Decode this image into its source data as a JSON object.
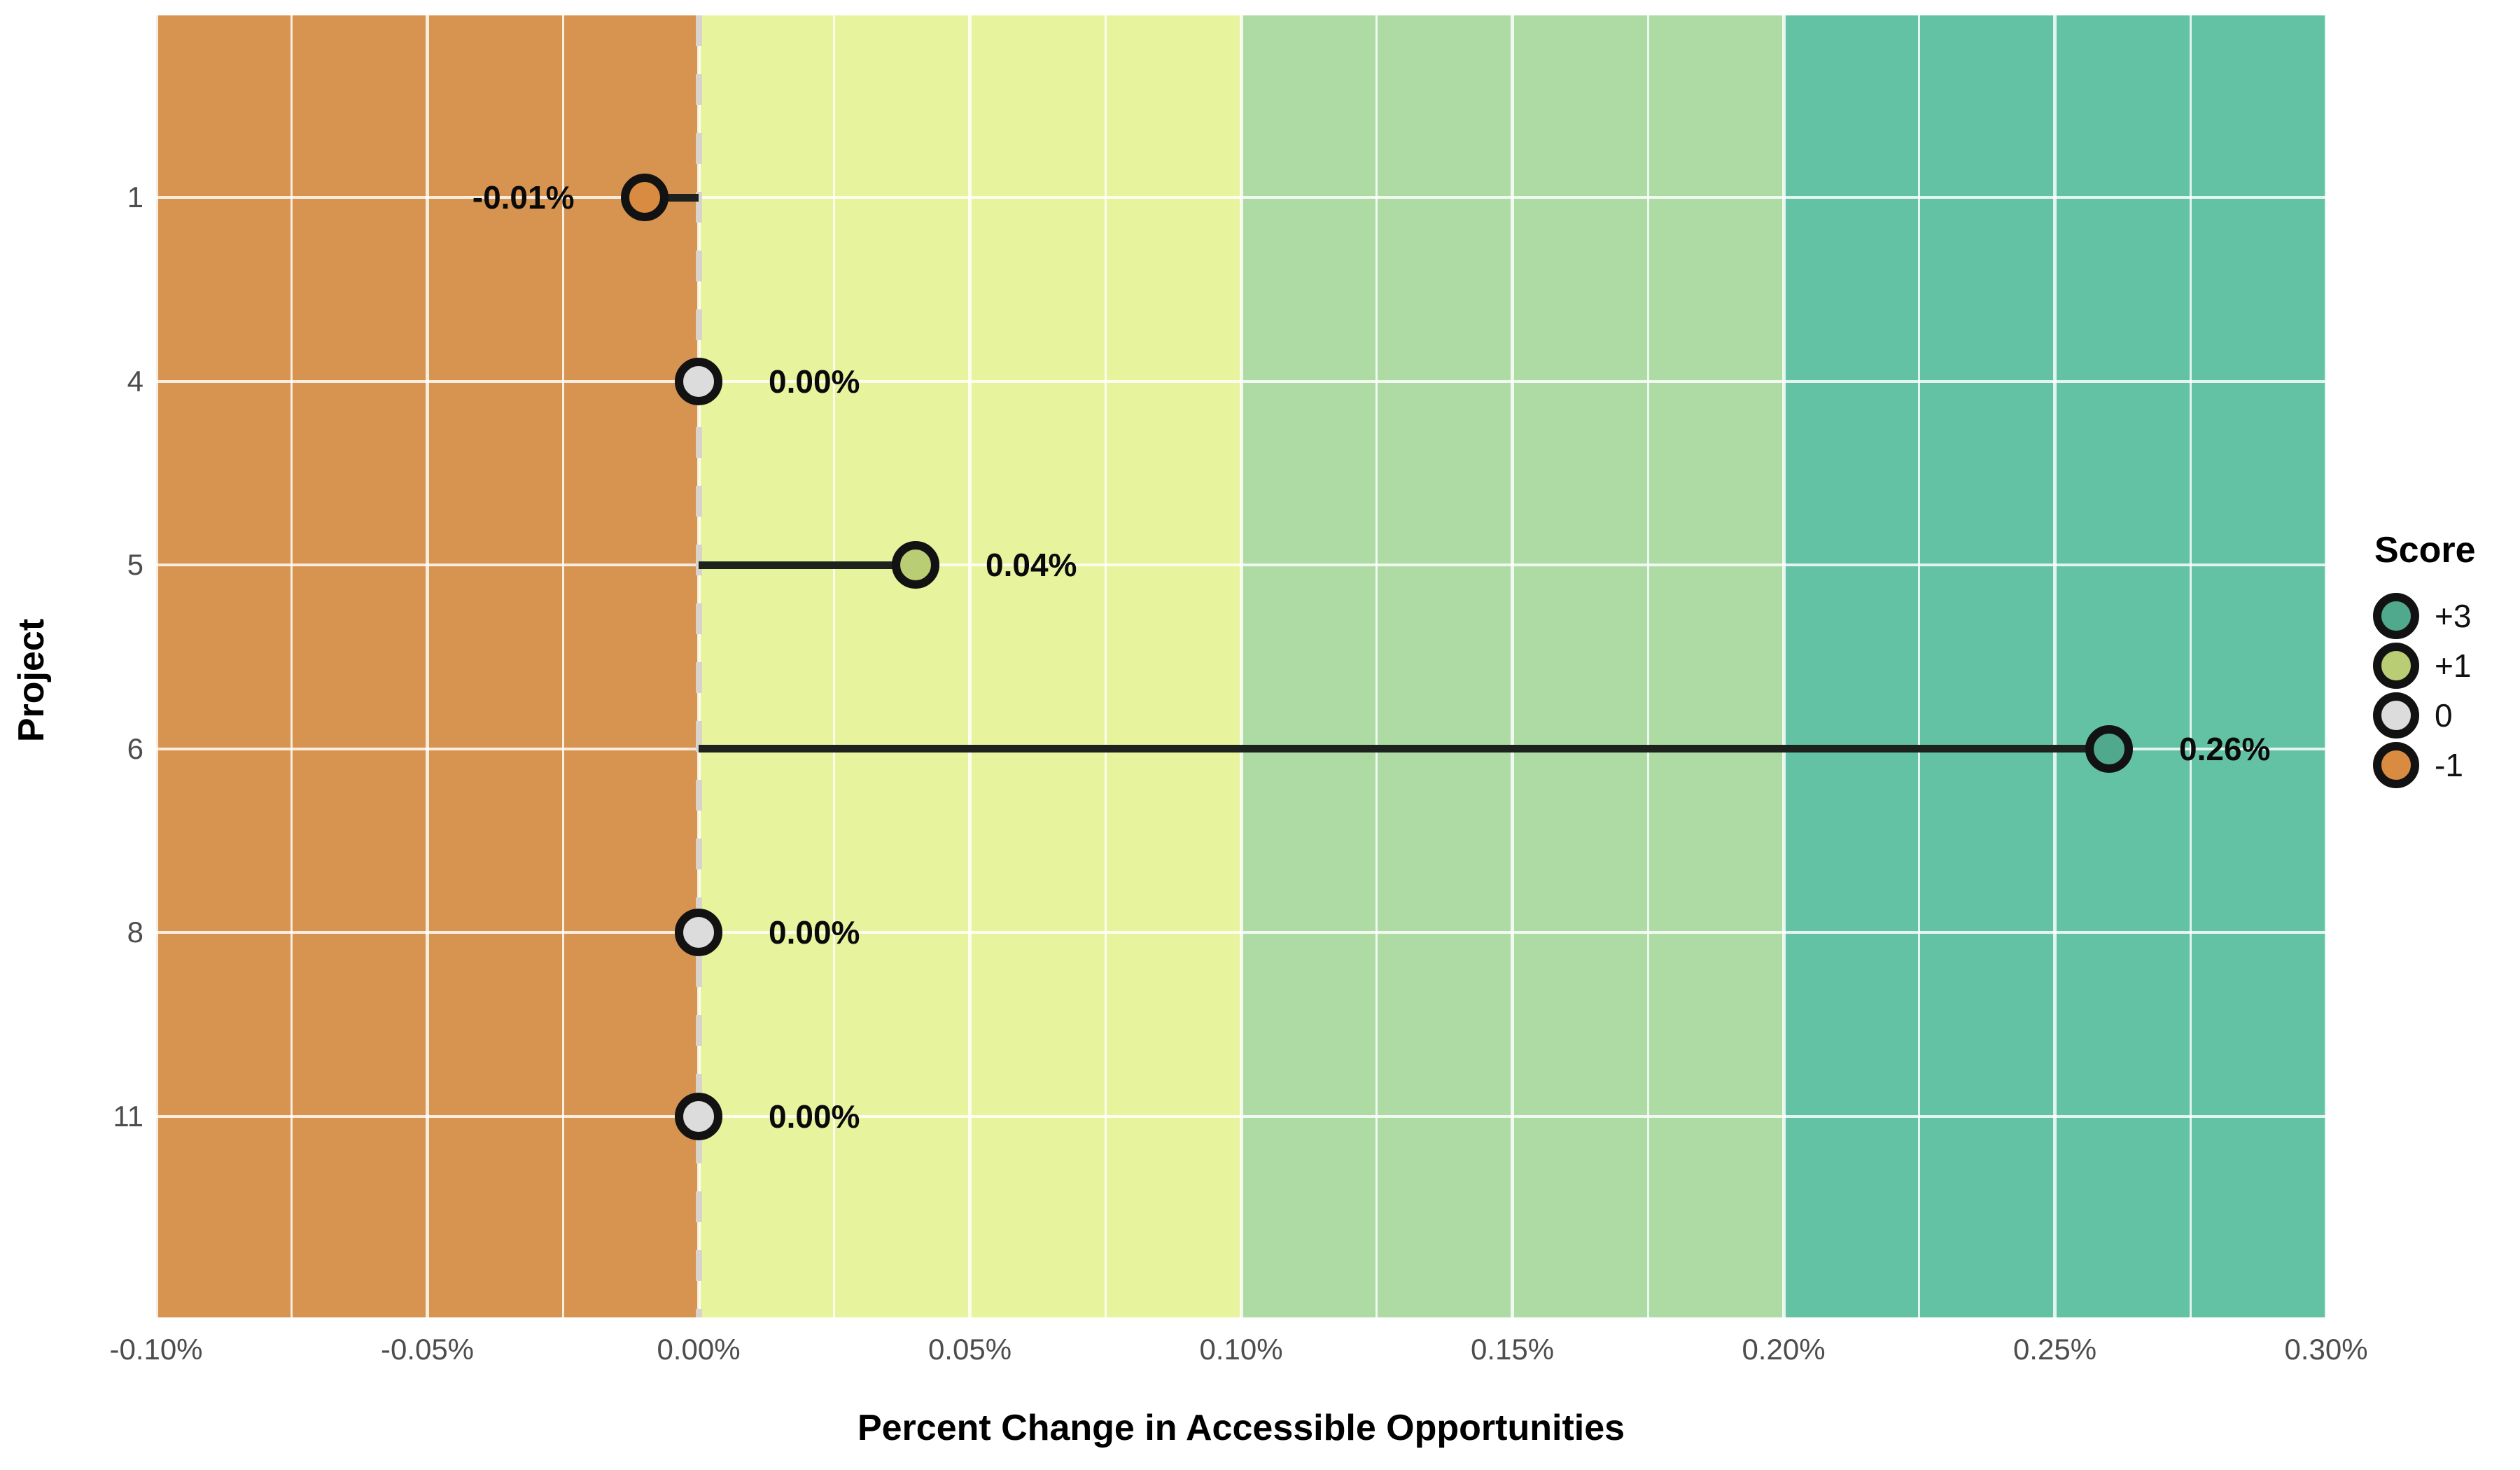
{
  "chart_data": {
    "type": "scatter",
    "subtype": "lollipop",
    "title": "",
    "xlabel": "Percent Change in Accessible Opportunities",
    "ylabel": "Project",
    "categories": [
      "1",
      "4",
      "5",
      "6",
      "8",
      "11"
    ],
    "rows": [
      {
        "project": "1",
        "value": -0.01,
        "label": "-0.01%",
        "score": -1
      },
      {
        "project": "4",
        "value": 0.0,
        "label": "0.00%",
        "score": 0
      },
      {
        "project": "5",
        "value": 0.04,
        "label": "0.04%",
        "score": 1
      },
      {
        "project": "6",
        "value": 0.26,
        "label": "0.26%",
        "score": 3
      },
      {
        "project": "8",
        "value": 0.0,
        "label": "0.00%",
        "score": 0
      },
      {
        "project": "11",
        "value": 0.0,
        "label": "0.00%",
        "score": 0
      }
    ],
    "xlim": [
      -0.1,
      0.3
    ],
    "x_ticks": [
      {
        "value": -0.1,
        "label": "-0.10%"
      },
      {
        "value": -0.05,
        "label": "-0.05%"
      },
      {
        "value": 0.0,
        "label": "0.00%"
      },
      {
        "value": 0.05,
        "label": "0.05%"
      },
      {
        "value": 0.1,
        "label": "0.10%"
      },
      {
        "value": 0.15,
        "label": "0.15%"
      },
      {
        "value": 0.2,
        "label": "0.20%"
      },
      {
        "value": 0.25,
        "label": "0.25%"
      },
      {
        "value": 0.3,
        "label": "0.30%"
      }
    ],
    "x_minor_step": 0.025,
    "grid": "on",
    "bands": [
      {
        "from": -0.1,
        "to": 0.0,
        "color": "#D79450"
      },
      {
        "from": 0.0,
        "to": 0.1,
        "color": "#E7F39D"
      },
      {
        "from": 0.1,
        "to": 0.2,
        "color": "#AEDBA4"
      },
      {
        "from": 0.2,
        "to": 0.3,
        "color": "#63C2A3"
      }
    ],
    "score_colors": {
      "-1": "#D98C41",
      "0": "#DCDCDC",
      "1": "#B9CD74",
      "3": "#50A88D"
    },
    "zero_line": {
      "x": 0.0,
      "style": "dashed",
      "color": "#D8D3CB"
    },
    "legend": {
      "title": "Score",
      "position": "right",
      "entries": [
        {
          "label": "+3",
          "score": 3
        },
        {
          "label": "+1",
          "score": 1
        },
        {
          "label": "0",
          "score": 0
        },
        {
          "label": "-1",
          "score": -1
        }
      ]
    }
  }
}
